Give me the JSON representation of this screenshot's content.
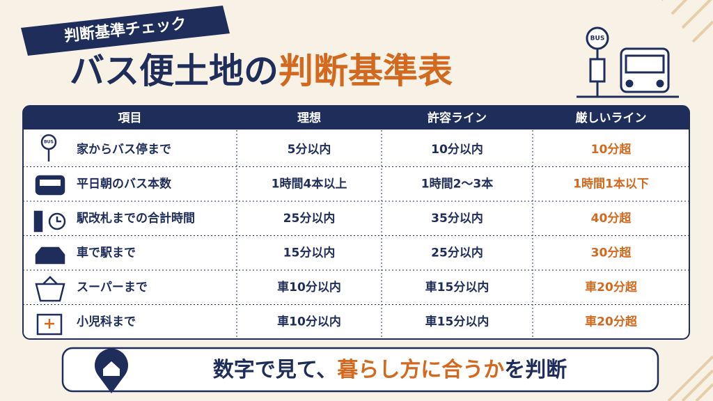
{
  "header": {
    "banner": "判断基準チェック",
    "title_main": "バス便土地の",
    "title_accent": "判断基準表",
    "bus_sign": "BUS"
  },
  "table": {
    "columns": [
      "項目",
      "理想",
      "許容ライン",
      "厳しいライン"
    ],
    "rows": [
      [
        "家からバス停まで",
        "5分以内",
        "10分以内",
        "10分超"
      ],
      [
        "平日朝のバス本数",
        "1時間4本以上",
        "1時間2〜3本",
        "1時間1本以下"
      ],
      [
        "駅改札までの合計時間",
        "25分以内",
        "35分以内",
        "40分超"
      ],
      [
        "車で駅まで",
        "15分以内",
        "25分以内",
        "30分超"
      ],
      [
        "スーパーまで",
        "車10分以内",
        "車15分以内",
        "車20分超"
      ],
      [
        "小児科まで",
        "車10分以内",
        "車15分以内",
        "車20分超"
      ]
    ],
    "bus_stop_icon_label": "BUS"
  },
  "footer": {
    "text_before": "数字で見て、",
    "text_accent": "暮らし方に合うか",
    "text_after": "を判断"
  }
}
